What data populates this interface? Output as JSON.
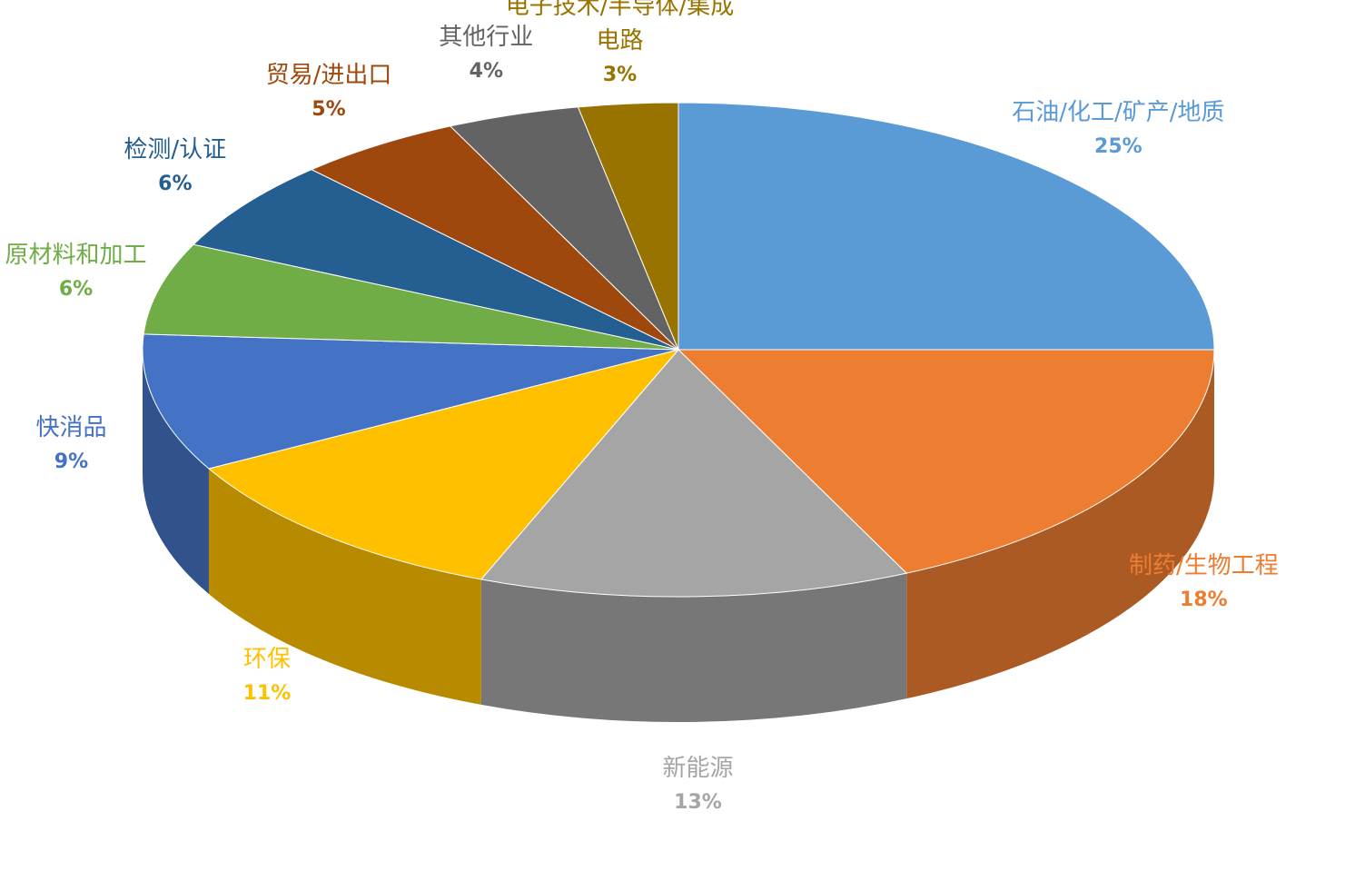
{
  "chart_data": {
    "type": "pie",
    "categories": [
      "石油/化工/矿产/地质",
      "制药/生物工程",
      "新能源",
      "环保",
      "快消品",
      "原材料和加工",
      "检测/认证",
      "贸易/进出口",
      "其他行业",
      "电子技术/半导体/集成电路"
    ],
    "values": [
      25,
      18,
      13,
      11,
      9,
      6,
      6,
      5,
      4,
      3
    ],
    "value_labels": [
      "25%",
      "18%",
      "13%",
      "11%",
      "9%",
      "6%",
      "6%",
      "5%",
      "4%",
      "3%"
    ],
    "colors": [
      "#5B9BD5",
      "#ED7D31",
      "#A5A5A5",
      "#FFC000",
      "#4472C4",
      "#70AD47",
      "#255E91",
      "#9E480E",
      "#636363",
      "#997300"
    ]
  }
}
